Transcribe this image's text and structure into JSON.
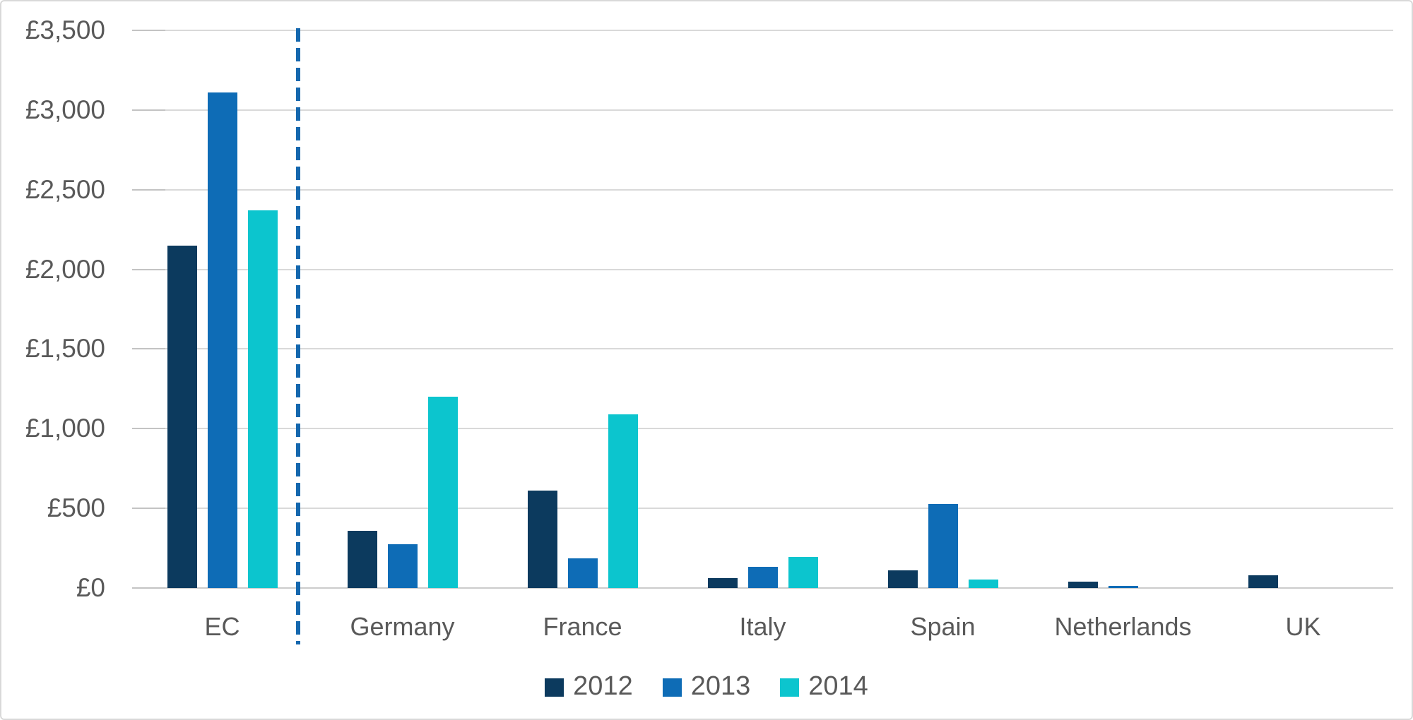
{
  "chart_data": {
    "type": "bar",
    "title": "",
    "categories": [
      "EC",
      "Germany",
      "France",
      "Italy",
      "Spain",
      "Netherlands",
      "UK"
    ],
    "series": [
      {
        "name": "2012",
        "color": "#0c3a5e",
        "values": [
          2150,
          360,
          610,
          60,
          110,
          40,
          80
        ]
      },
      {
        "name": "2013",
        "color": "#0e6cb6",
        "values": [
          3110,
          275,
          185,
          135,
          525,
          15,
          0
        ]
      },
      {
        "name": "2014",
        "color": "#0cc5ce",
        "values": [
          2370,
          1200,
          1090,
          195,
          55,
          0,
          0
        ]
      }
    ],
    "y_axis": {
      "ylim": [
        0,
        3500
      ],
      "tick_interval": 500,
      "tick_values": [
        0,
        500,
        1000,
        1500,
        2000,
        2500,
        3000,
        3500
      ],
      "tick_labels": [
        "£0",
        "£500",
        "£1,000",
        "£1,500",
        "£2,000",
        "£2,500",
        "£3,000",
        "£3,500"
      ],
      "currency_prefix": "£"
    },
    "legend": {
      "position": "bottom",
      "entries": [
        "2012",
        "2013",
        "2014"
      ]
    },
    "grid": true,
    "divider": {
      "type": "vertical-dashed-line",
      "separates": [
        "EC",
        "Germany"
      ],
      "color": "#1467ae"
    },
    "colors": {
      "series_2012": "#0c3a5e",
      "series_2013": "#0e6cb6",
      "series_2014": "#0cc5ce",
      "gridline": "#d9d9d9",
      "zero_axis_line": "#cccccc",
      "text": "#595959",
      "background": "#ffffff",
      "frame_border": "#d9d9d9"
    }
  }
}
